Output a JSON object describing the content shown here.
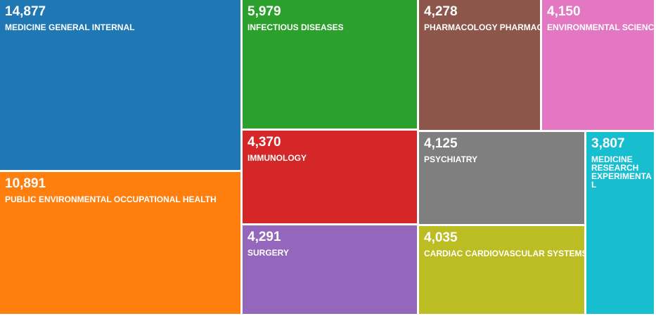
{
  "chart_data": {
    "type": "treemap",
    "items": [
      {
        "label": "MEDICINE GENERAL INTERNAL",
        "value": 14877,
        "display": "14,877",
        "color": "#1f77b4"
      },
      {
        "label": "PUBLIC ENVIRONMENTAL OCCUPATIONAL HEALTH",
        "value": 10891,
        "display": "10,891",
        "color": "#ff7f0e"
      },
      {
        "label": "INFECTIOUS DISEASES",
        "value": 5979,
        "display": "5,979",
        "color": "#2ca02c"
      },
      {
        "label": "IMMUNOLOGY",
        "value": 4370,
        "display": "4,370",
        "color": "#d62728"
      },
      {
        "label": "SURGERY",
        "value": 4291,
        "display": "4,291",
        "color": "#9467bd"
      },
      {
        "label": "PHARMACOLOGY PHARMACY",
        "value": 4278,
        "display": "4,278",
        "color": "#8c564b"
      },
      {
        "label": "ENVIRONMENTAL SCIENCES",
        "value": 4150,
        "display": "4,150",
        "color": "#e377c2"
      },
      {
        "label": "PSYCHIATRY",
        "value": 4125,
        "display": "4,125",
        "color": "#7f7f7f"
      },
      {
        "label": "CARDIAC CARDIOVASCULAR SYSTEMS",
        "value": 4035,
        "display": "4,035",
        "color": "#bcbd22"
      },
      {
        "label": "MEDICINE RESEARCH EXPERIMENTAL",
        "value": 3807,
        "display": "3,807",
        "color": "#17becf"
      }
    ]
  }
}
